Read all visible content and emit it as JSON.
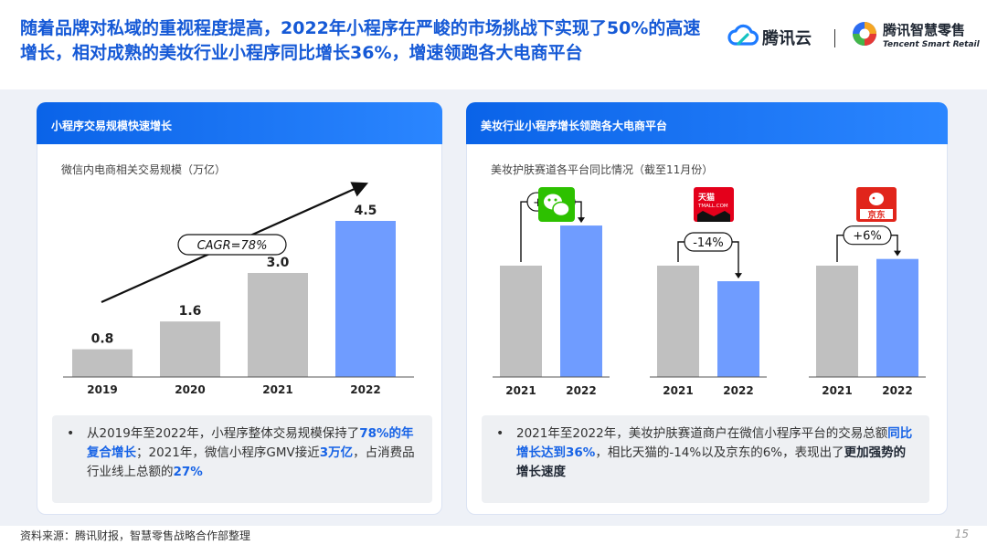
{
  "headline": "随着品牌对私域的重视程度提高，2022年小程序在严峻的市场挑战下实现了50%的高速增长，相对成熟的美妆行业小程序同比增长36%，增速领跑各大电商平台",
  "logos": {
    "tencent_cloud": "腾讯云",
    "smart_retail_cn": "腾讯智慧零售",
    "smart_retail_en": "Tencent Smart Retail"
  },
  "left_card": {
    "header": "小程序交易规模快速增长",
    "subtitle": "微信内电商相关交易规模（万亿）",
    "bullet": {
      "p1": "从2019年至2022年，小程序整体交易规模保持了",
      "h1": "78%的年复合增长",
      "p2": "；2021年，微信小程序GMV接近",
      "h2": "3万亿",
      "p3": "，占消费品行业线上总额的",
      "h3": "27%"
    }
  },
  "right_card": {
    "header": "美妆行业小程序增长领跑各大电商平台",
    "subtitle": "美妆护肤赛道各平台同比情况（截至11月份）",
    "bullet": {
      "p1": "2021年至2022年，美妆护肤赛道商户在微信小程序平台的交易总额",
      "h1": "同比增长达到36%",
      "p2": "，相比天猫的-14%以及京东的6%，表现出了",
      "b1": "更加强势的增长速度"
    }
  },
  "chart_data": [
    {
      "type": "bar",
      "title": "微信内电商相关交易规模（万亿）",
      "categories": [
        "2019",
        "2020",
        "2021",
        "2022"
      ],
      "values": [
        0.8,
        1.6,
        3.0,
        4.5
      ],
      "labels": [
        "0.8",
        "1.6",
        "3.0",
        "4.5"
      ],
      "annotation": "CAGR=78%",
      "colors": [
        "#c0c0c0",
        "#c0c0c0",
        "#c0c0c0",
        "#6f9cff"
      ],
      "ylim": [
        0,
        5
      ]
    },
    {
      "type": "bar",
      "title": "美妆护肤赛道各平台同比情况（截至11月份）",
      "groups": [
        {
          "platform": "微信",
          "logo_icon": "wechat-icon",
          "categories": [
            "2021",
            "2022"
          ],
          "values": [
            100,
            136
          ],
          "change": "+36%"
        },
        {
          "platform": "天猫",
          "logo_icon": "tmall-icon",
          "logo_text": "天猫",
          "logo_sub": "TMALL.COM",
          "categories": [
            "2021",
            "2022"
          ],
          "values": [
            100,
            86
          ],
          "change": "-14%"
        },
        {
          "platform": "京东",
          "logo_icon": "jd-icon",
          "logo_text": "京东",
          "categories": [
            "2021",
            "2022"
          ],
          "values": [
            100,
            106
          ],
          "change": "+6%"
        }
      ],
      "colors": [
        "#c0c0c0",
        "#6f9cff"
      ]
    }
  ],
  "footer": {
    "source": "资料来源：腾讯财报，智慧零售战略合作部整理",
    "page": "15"
  }
}
